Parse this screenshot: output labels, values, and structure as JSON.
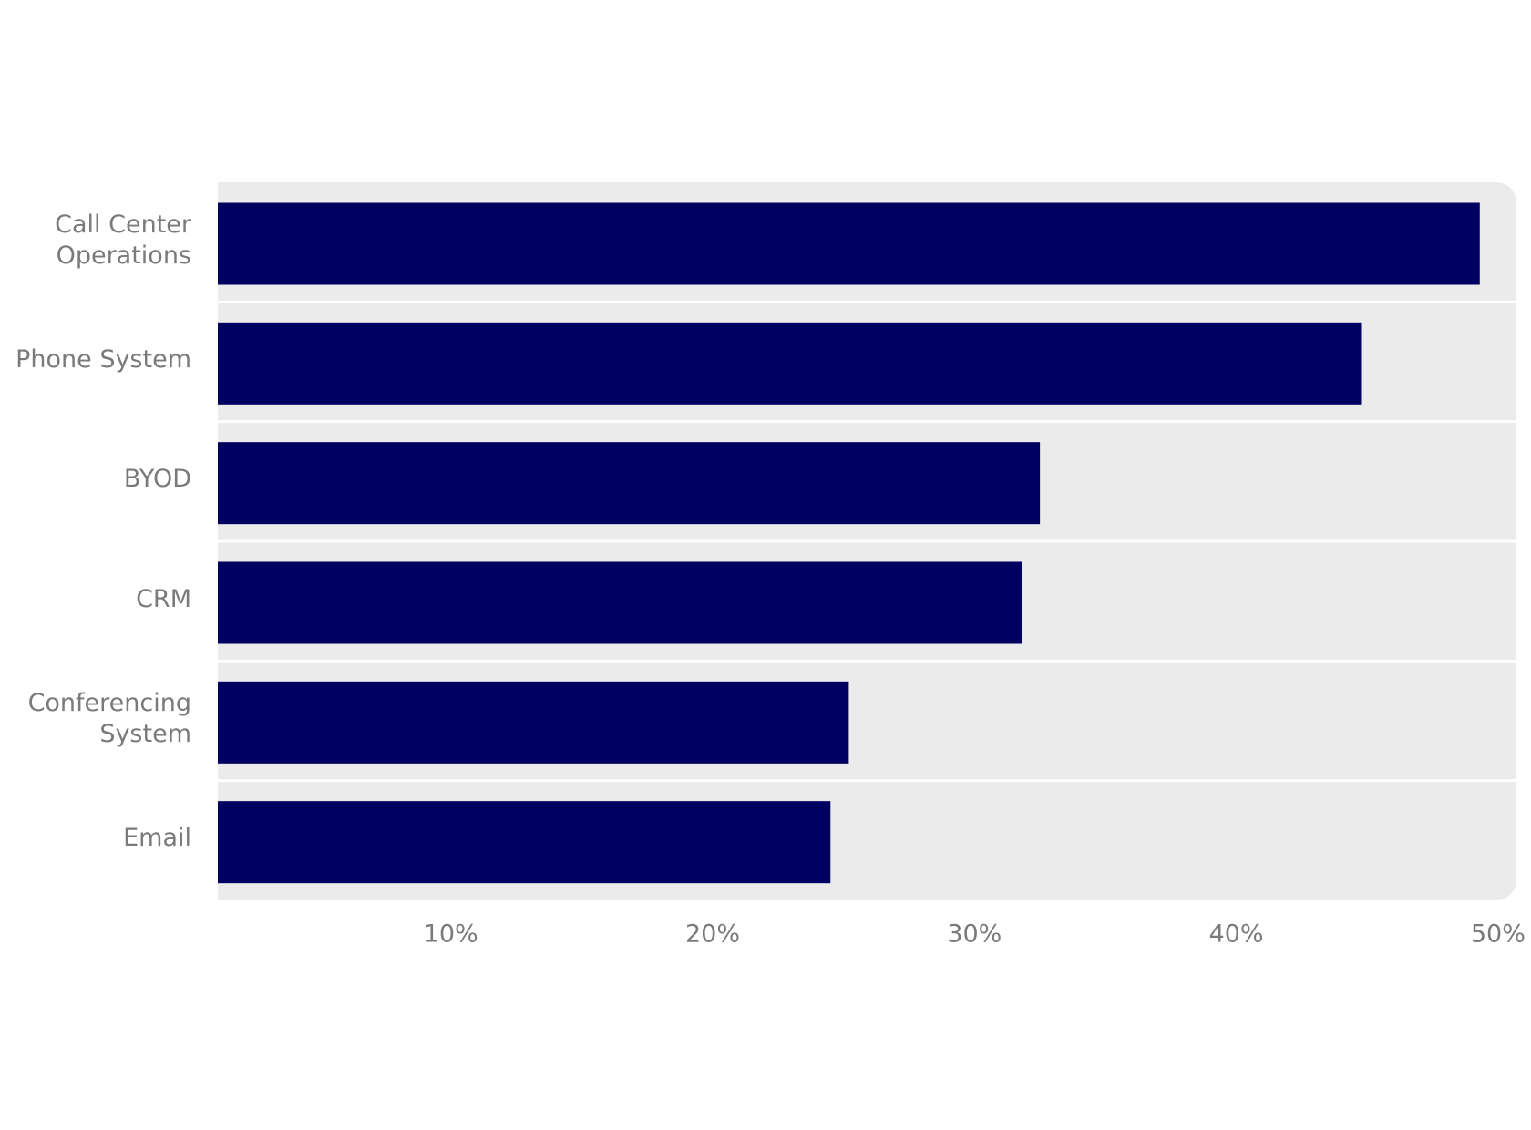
{
  "chart_data": {
    "type": "barh",
    "categories": [
      "Call Center\nOperations",
      "Phone System",
      "BYOD",
      "CRM",
      "Conferencing\nSystem",
      "Email"
    ],
    "values": [
      49.3,
      44.8,
      32.5,
      31.8,
      25.2,
      24.5
    ],
    "color": "#000060",
    "xlim": [
      1.1,
      50.7
    ],
    "xticks": [
      {
        "value": 10,
        "label": "10%"
      },
      {
        "value": 20,
        "label": "20%"
      },
      {
        "value": 30,
        "label": "30%"
      },
      {
        "value": 40,
        "label": "40%"
      },
      {
        "value": 50,
        "label": "50%"
      }
    ]
  }
}
